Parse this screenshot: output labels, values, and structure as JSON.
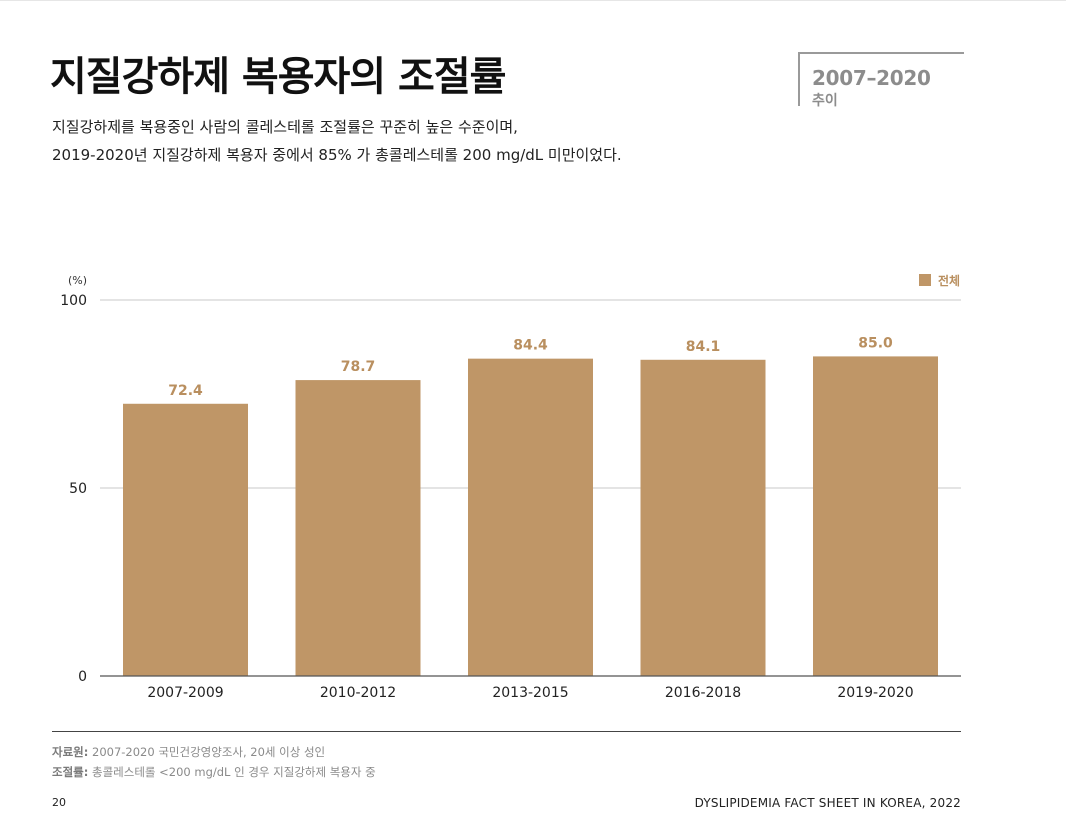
{
  "page": {
    "title": "지질강하제 복용자의 조절률",
    "subtitle_line1": "지질강하제를 복용중인 사람의 콜레스테롤  조절률은 꾸준히 높은 수준이며,",
    "subtitle_line2": "2019-2020년 지질강하제 복용자 중에서 85% 가 총콜레스테롤 200 mg/dL 미만이었다.",
    "badge_years": "2007–2020",
    "badge_sub": "추이"
  },
  "chart_data": {
    "type": "bar",
    "categories": [
      "2007-2009",
      "2010-2012",
      "2013-2015",
      "2016-2018",
      "2019-2020"
    ],
    "series": [
      {
        "name": "전체",
        "values": [
          72.4,
          78.7,
          84.4,
          84.1,
          85.0
        ]
      }
    ],
    "value_labels": [
      "72.4",
      "78.7",
      "84.4",
      "84.1",
      "85.0"
    ],
    "ylabel": "(%)",
    "ylim": [
      0,
      100
    ],
    "yticks": [
      0,
      50,
      100
    ],
    "ytick_labels": [
      "0",
      "50",
      "100"
    ],
    "grid": true,
    "legend_position": "top-right",
    "colors": {
      "bar": "#bf9667",
      "label": "#b98f5f",
      "grid": "#c8c8c8",
      "axis": "#555555"
    }
  },
  "notes": {
    "source_label": "자료원:",
    "source_text": " 2007-2020 국민건강영양조사, 20세 이상 성인",
    "control_label": "조절률:",
    "control_text": " 총콜레스테롤 <200 mg/dL 인 경우 지질강하제 복용자 중"
  },
  "footer": {
    "page_number": "20",
    "publication": "DYSLIPIDEMIA FACT SHEET IN KOREA, 2022"
  }
}
